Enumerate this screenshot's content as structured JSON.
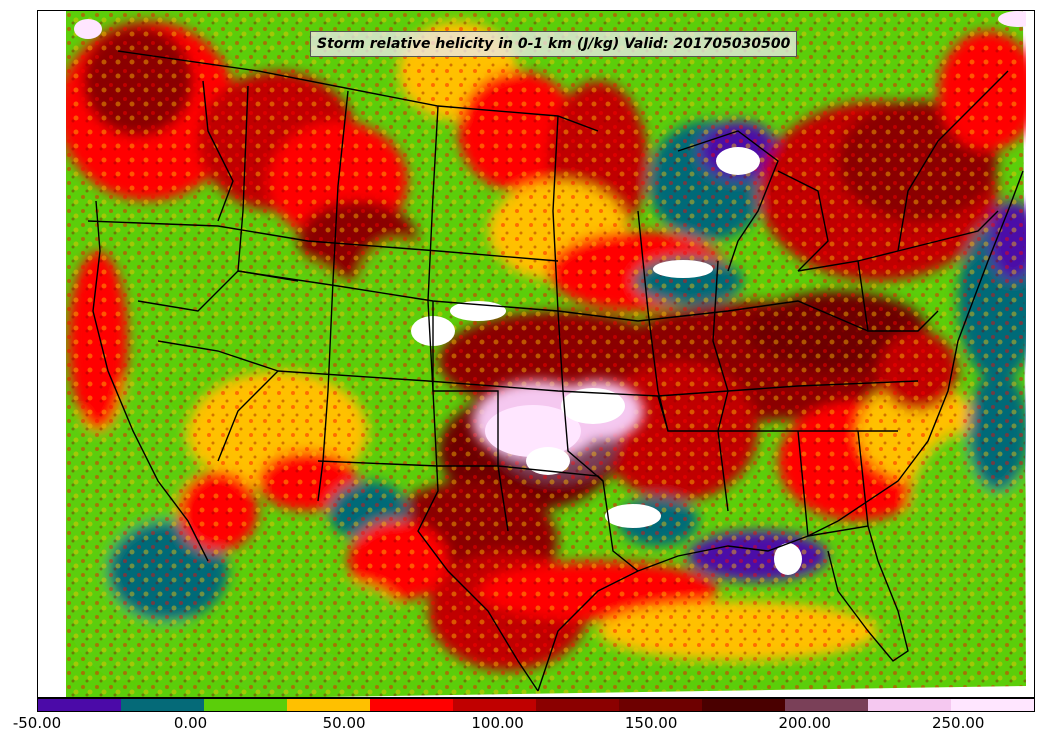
{
  "title": "Storm relative helicity in 0-1 km (J/kg) Valid: 201705030500",
  "colorbar": {
    "colors": [
      "#4b0aa8",
      "#056a78",
      "#5bce0a",
      "#ffc000",
      "#ff0000",
      "#c00000",
      "#8b0000",
      "#6e0000",
      "#4a0000",
      "#7a4058",
      "#f5c8f0",
      "#ffe6ff"
    ],
    "bins": [
      -50,
      -25,
      0,
      25,
      50,
      75,
      100,
      125,
      150,
      175,
      200,
      225,
      250,
      275
    ],
    "tick_values": [
      -50,
      0,
      50,
      100,
      150,
      200,
      250
    ],
    "tick_labels": [
      "-50.00",
      "0.00",
      "50.00",
      "100.00",
      "150.00",
      "200.00",
      "250.00"
    ]
  },
  "map": {
    "region": "Continental United States",
    "boundaries": "state borders and coastlines in black"
  }
}
